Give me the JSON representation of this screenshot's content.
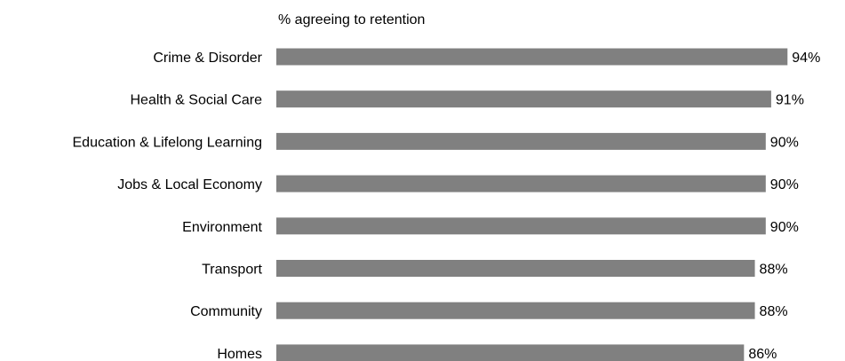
{
  "chart_data": {
    "type": "bar",
    "orientation": "horizontal",
    "title": "% agreeing to retention",
    "categories": [
      "Crime & Disorder",
      "Health & Social Care",
      "Education & Lifelong Learning",
      "Jobs & Local Economy",
      "Environment",
      "Transport",
      "Community",
      "Homes"
    ],
    "values": [
      94,
      91,
      90,
      90,
      90,
      88,
      88,
      86
    ],
    "value_labels": [
      "94%",
      "91%",
      "90%",
      "90%",
      "90%",
      "88%",
      "88%",
      "86%"
    ],
    "xlim": [
      0,
      100
    ],
    "bar_color": "#808080",
    "grid": false,
    "legend": "none"
  }
}
